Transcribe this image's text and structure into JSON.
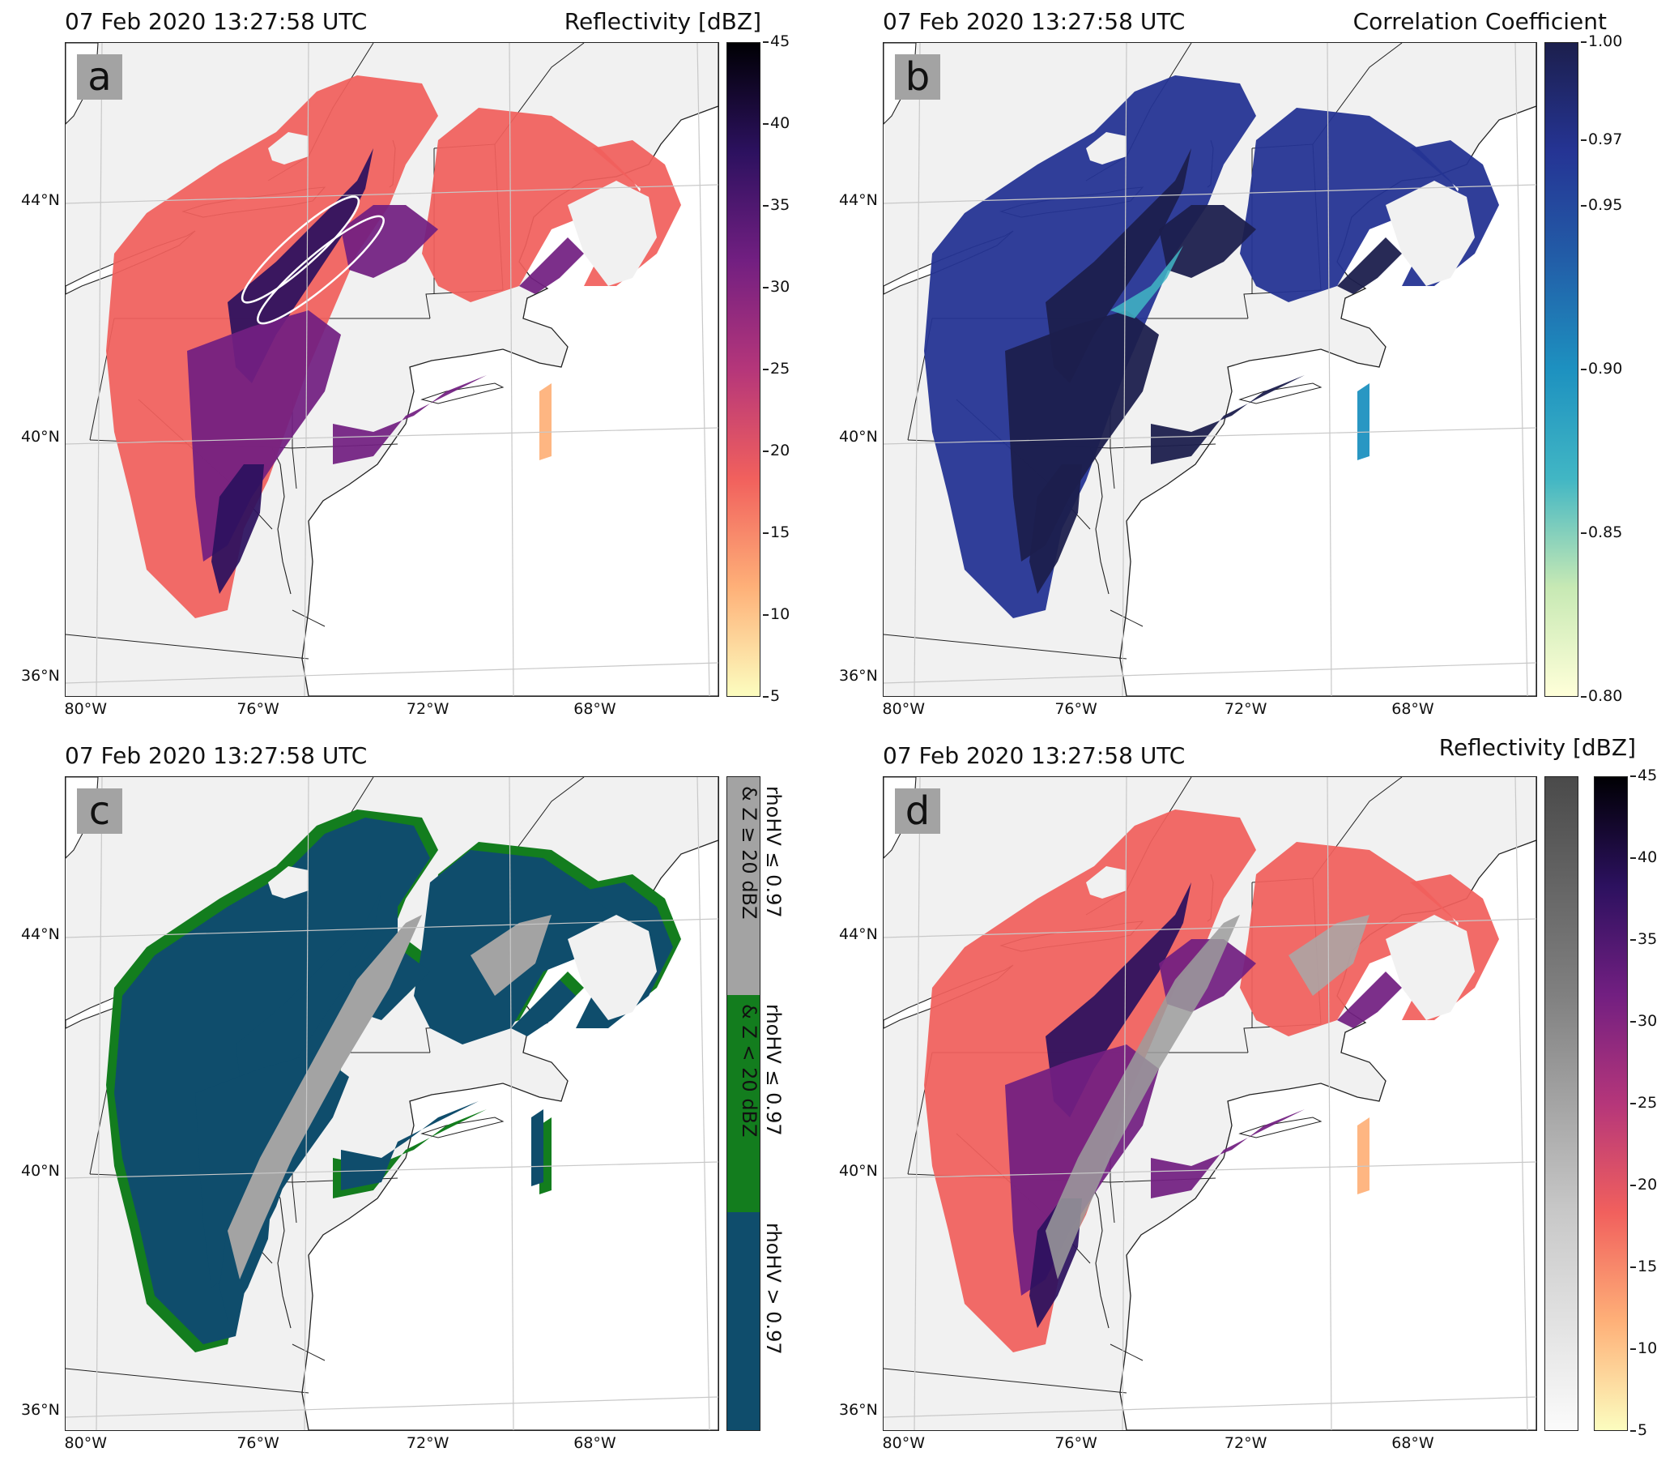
{
  "panels": [
    {
      "id": "a",
      "letter": "a",
      "timestamp": "07 Feb 2020 13:27:58 UTC",
      "title": "Reflectivity [dBZ]",
      "colorbar": {
        "variable": "Reflectivity",
        "units": "dBZ",
        "range": [
          5,
          45
        ],
        "colormap": "magma_r",
        "ticks": [
          "45",
          "40",
          "35",
          "30",
          "25",
          "20",
          "15",
          "10",
          "5"
        ]
      },
      "annotation": "two white ellipses outlining a band"
    },
    {
      "id": "b",
      "letter": "b",
      "timestamp": "07 Feb 2020 13:27:58 UTC",
      "title": "Correlation Coefficient",
      "colorbar": {
        "variable": "Correlation Coefficient",
        "range": [
          0.8,
          1.0
        ],
        "colormap": "YlGnBu",
        "ticks": [
          "1.00",
          "0.97",
          "0.95",
          "0.90",
          "0.85",
          "0.80"
        ]
      }
    },
    {
      "id": "c",
      "letter": "c",
      "timestamp": "07 Feb 2020 13:27:58 UTC",
      "title": "",
      "categories": [
        {
          "label": "rhoHV ≤ 0.97",
          "label2": "& Z ≥ 20 dBZ",
          "color": "#a3a3a3"
        },
        {
          "label": "rhoHV ≤ 0.97",
          "label2": "& Z < 20 dBZ",
          "color": "#137d1e"
        },
        {
          "label": "rhoHV > 0.97",
          "label2": "",
          "color": "#0f4d6c"
        }
      ]
    },
    {
      "id": "d",
      "letter": "d",
      "timestamp": "07 Feb 2020 13:27:58 UTC",
      "title": "Reflectivity [dBZ]",
      "colorbar": {
        "variable": "Reflectivity",
        "units": "dBZ",
        "range": [
          5,
          45
        ],
        "colormap": "magma_r + gray",
        "ticks": [
          "45",
          "40",
          "35",
          "30",
          "25",
          "20",
          "15",
          "10",
          "5"
        ]
      }
    }
  ],
  "axes": {
    "lat_labels": [
      "44°N",
      "40°N",
      "36°N"
    ],
    "lon_labels": [
      "80°W",
      "76°W",
      "72°W",
      "68°W"
    ]
  },
  "colors": {
    "ocean": "#ffffff",
    "land": "#f1f1f1",
    "border": "#222222",
    "grid": "#c8c8c8",
    "magma": [
      "#fcfdbf",
      "#feb078",
      "#f1605d",
      "#b5367a",
      "#721f81",
      "#2c115f",
      "#000004"
    ],
    "ccmap": [
      "#ffffd9",
      "#c7e9b4",
      "#41b6c4",
      "#1d91c0",
      "#225ea8",
      "#253494",
      "#1c1f4d"
    ]
  }
}
